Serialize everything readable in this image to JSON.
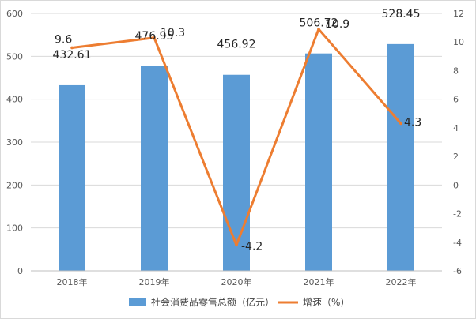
{
  "chart_data": {
    "type": "bar",
    "categories": [
      "2018年",
      "2019年",
      "2020年",
      "2021年",
      "2022年"
    ],
    "series": [
      {
        "name": "社会消费品零售总额（亿元）",
        "type": "bar",
        "axis": "left",
        "values": [
          432.61,
          476.95,
          456.92,
          506.72,
          528.45
        ],
        "labels": [
          "432.61",
          "476.95",
          "456.92",
          "506.72",
          "528.45"
        ],
        "color": "#5b9bd5"
      },
      {
        "name": "增速（%）",
        "type": "line",
        "axis": "right",
        "values": [
          9.6,
          10.3,
          -4.2,
          10.9,
          4.3
        ],
        "labels": [
          "9.6",
          "10.3",
          "-4.2",
          "10.9",
          "4.3"
        ],
        "color": "#ed7d31"
      }
    ],
    "y_left": {
      "min": 0,
      "max": 600,
      "ticks": [
        "0",
        "100",
        "200",
        "300",
        "400",
        "500",
        "600"
      ]
    },
    "y_right": {
      "min": -6,
      "max": 12,
      "ticks": [
        "-6",
        "-4",
        "-2",
        "0",
        "2",
        "4",
        "6",
        "8",
        "10",
        "12"
      ]
    },
    "grid": true,
    "legend": "bottom"
  }
}
